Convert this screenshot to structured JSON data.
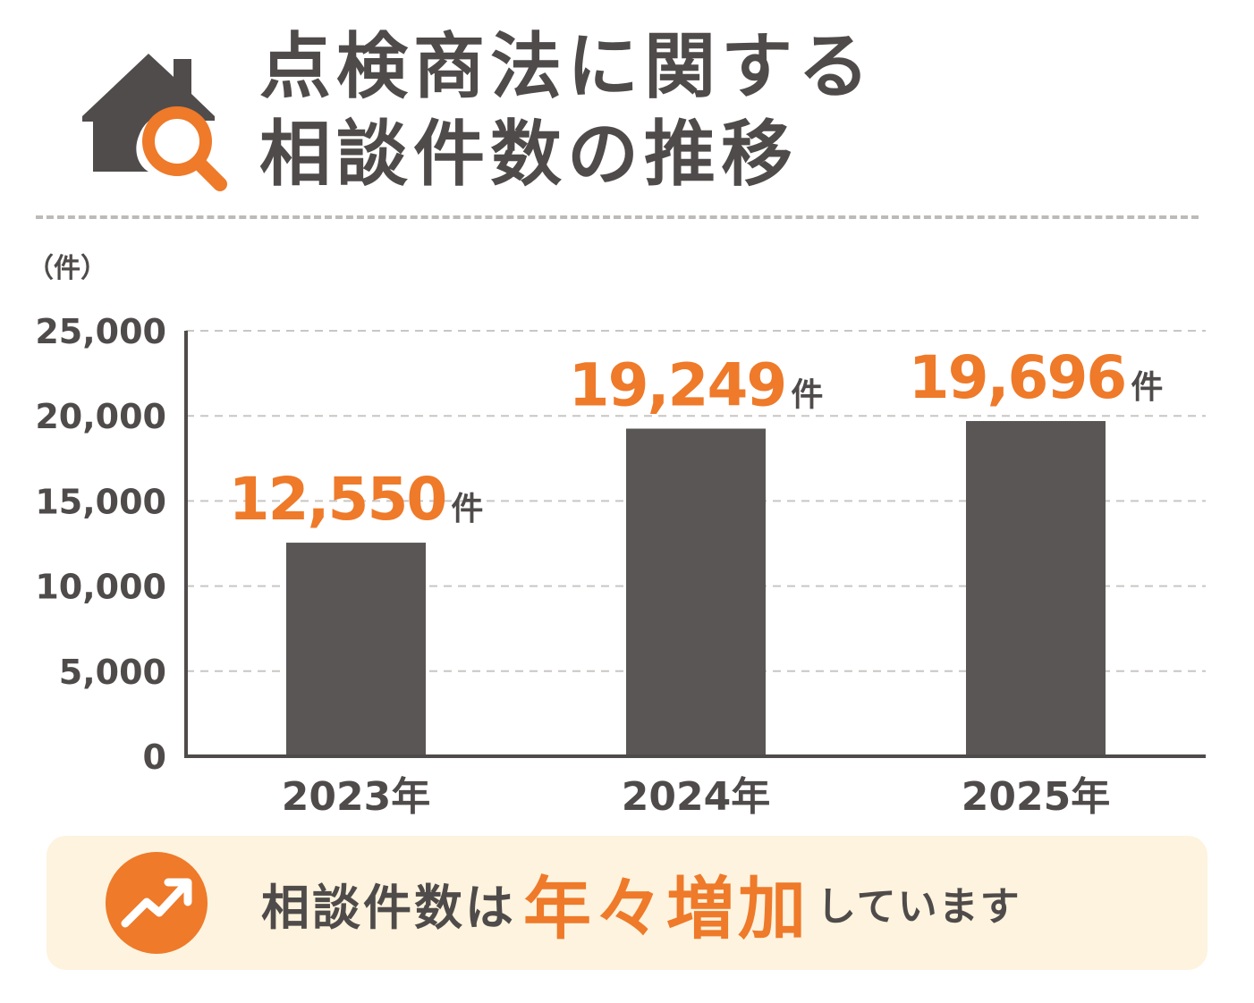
{
  "header": {
    "title_line1": "点検商法に関する",
    "title_line2": "相談件数の推移",
    "icon": "house-magnifier-icon",
    "accent_color": "#ee7a2a",
    "text_color": "#4f4b4a"
  },
  "chart_data": {
    "type": "bar",
    "title": "点検商法に関する相談件数の推移",
    "unit_label": "（件）",
    "categories": [
      "2023年",
      "2024年",
      "2025年"
    ],
    "values": [
      12550,
      19249,
      19696
    ],
    "value_labels": [
      "12,550",
      "19,249",
      "19,696"
    ],
    "value_unit": "件",
    "ylim": [
      0,
      25000
    ],
    "yticks": [
      0,
      5000,
      10000,
      15000,
      20000,
      25000
    ],
    "ytick_labels": [
      "0",
      "5,000",
      "10,000",
      "15,000",
      "20,000",
      "25,000"
    ],
    "grid": true,
    "bar_color": "#5a5655",
    "value_label_color": "#ee7a2a"
  },
  "callout": {
    "icon": "trend-up-arrow-icon",
    "text_before": "相談件数は",
    "text_highlight": "年々増加",
    "text_after": "しています",
    "background": "#fdf3de"
  }
}
